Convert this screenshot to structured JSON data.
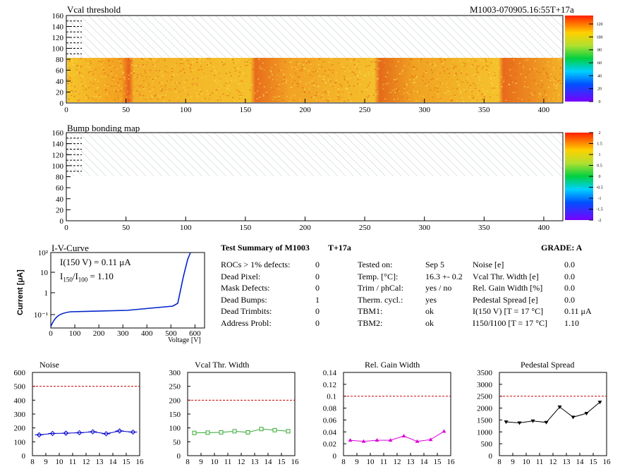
{
  "header": {
    "map1_title": "Vcal threshold",
    "module_id": "M1003-070905.16:55T+17a",
    "map2_title": "Bump bonding map"
  },
  "maps": {
    "x_ticks": [
      "0",
      "50",
      "100",
      "150",
      "200",
      "250",
      "300",
      "350",
      "400"
    ],
    "y_ticks": [
      "0",
      "20",
      "40",
      "60",
      "80",
      "100",
      "120",
      "140",
      "160"
    ],
    "palette1_ticks": [
      "120",
      "100",
      "80",
      "60",
      "40",
      "20",
      "0"
    ],
    "palette2_ticks": [
      "2",
      "1.5",
      "1",
      "0.5",
      "0",
      "-0.5",
      "-1",
      "-1.5",
      "-2"
    ]
  },
  "iv": {
    "title": "I-V-Curve",
    "ylabel": "Current [μA]",
    "xlabel": "Voltage [V]",
    "i150": "I(150 V) = 0.11 μA",
    "ratio_pre": "I",
    "ratio_sub1": "150",
    "ratio_mid": "/I",
    "ratio_sub2": "100",
    "ratio_val": " =  1.10",
    "x_ticks": [
      "0",
      "100",
      "200",
      "300",
      "400",
      "500",
      "600"
    ],
    "y_ticks": [
      "10⁻¹",
      "1",
      "10",
      "10²"
    ]
  },
  "summary": {
    "title": "Test Summary of M1003",
    "temp": "T+17a",
    "grade": "GRADE:  A",
    "col1": [
      {
        "label": "ROCs > 1% defects:",
        "value": "0"
      },
      {
        "label": "Dead Pixel:",
        "value": "0"
      },
      {
        "label": "Mask Defects:",
        "value": "0"
      },
      {
        "label": "Dead Bumps:",
        "value": "1"
      },
      {
        "label": "Dead Trimbits:",
        "value": "0"
      },
      {
        "label": "Address Probl:",
        "value": "0"
      }
    ],
    "col2": [
      {
        "label": "Tested on:",
        "value": "Sep 5"
      },
      {
        "label": "Temp. [°C]:",
        "value": "16.3 +- 0.2"
      },
      {
        "label": "Trim / phCal:",
        "value": "yes / no"
      },
      {
        "label": "Therm. cycl.:",
        "value": "yes"
      },
      {
        "label": "TBM1:",
        "value": "ok"
      },
      {
        "label": "TBM2:",
        "value": "ok"
      }
    ],
    "col3": [
      {
        "label": "Noise [e]",
        "value": "0.0"
      },
      {
        "label": "Vcal Thr. Width [e]",
        "value": "0.0"
      },
      {
        "label": "Rel. Gain Width [%]",
        "value": "0.0"
      },
      {
        "label": "Pedestal Spread [e]",
        "value": "0.0"
      },
      {
        "label": "I(150 V) [T = 17 °C]",
        "value": "0.11 μA"
      },
      {
        "label": "I150/I100  [T = 17 °C]",
        "value": "1.10"
      }
    ]
  },
  "chart_data": [
    {
      "type": "scatter",
      "title": "Noise",
      "x": [
        8.5,
        9.5,
        10.5,
        11.5,
        12.5,
        13.5,
        14.5,
        15.5
      ],
      "values": [
        150,
        160,
        162,
        165,
        172,
        158,
        178,
        170
      ],
      "xlim": [
        8,
        16
      ],
      "ylim": [
        0,
        600
      ],
      "y_ticks": [
        0,
        100,
        200,
        300,
        400,
        500,
        600
      ],
      "threshold": 500,
      "color": "#0000cc"
    },
    {
      "type": "scatter",
      "title": "Vcal Thr. Width",
      "x": [
        8.5,
        9.5,
        10.5,
        11.5,
        12.5,
        13.5,
        14.5,
        15.5
      ],
      "values": [
        82,
        83,
        84,
        88,
        84,
        96,
        92,
        88
      ],
      "xlim": [
        8,
        16
      ],
      "ylim": [
        0,
        300
      ],
      "y_ticks": [
        0,
        50,
        100,
        150,
        200,
        250,
        300
      ],
      "threshold": 200,
      "color": "#33aa33"
    },
    {
      "type": "line",
      "title": "Rel. Gain Width",
      "x": [
        8.5,
        9.5,
        10.5,
        11.5,
        12.5,
        13.5,
        14.5,
        15.5
      ],
      "values": [
        0.026,
        0.024,
        0.026,
        0.026,
        0.033,
        0.024,
        0.027,
        0.041
      ],
      "xlim": [
        8,
        16
      ],
      "ylim": [
        0,
        0.14
      ],
      "y_ticks": [
        0,
        0.02,
        0.04,
        0.06,
        0.08,
        0.1,
        0.12,
        0.14
      ],
      "threshold": 0.1,
      "color": "#dd00dd"
    },
    {
      "type": "line",
      "title": "Pedestal Spread",
      "x": [
        8.5,
        9.5,
        10.5,
        11.5,
        12.5,
        13.5,
        14.5,
        15.5
      ],
      "values": [
        1420,
        1380,
        1460,
        1400,
        2050,
        1620,
        1780,
        2250
      ],
      "xlim": [
        8,
        16
      ],
      "ylim": [
        0,
        3500
      ],
      "y_ticks": [
        0,
        500,
        1000,
        1500,
        2000,
        2500,
        3000,
        3500
      ],
      "threshold": 2500,
      "color": "#000000"
    }
  ],
  "chart_x_ticks": [
    "8",
    "9",
    "10",
    "11",
    "12",
    "13",
    "14",
    "15",
    "16"
  ]
}
